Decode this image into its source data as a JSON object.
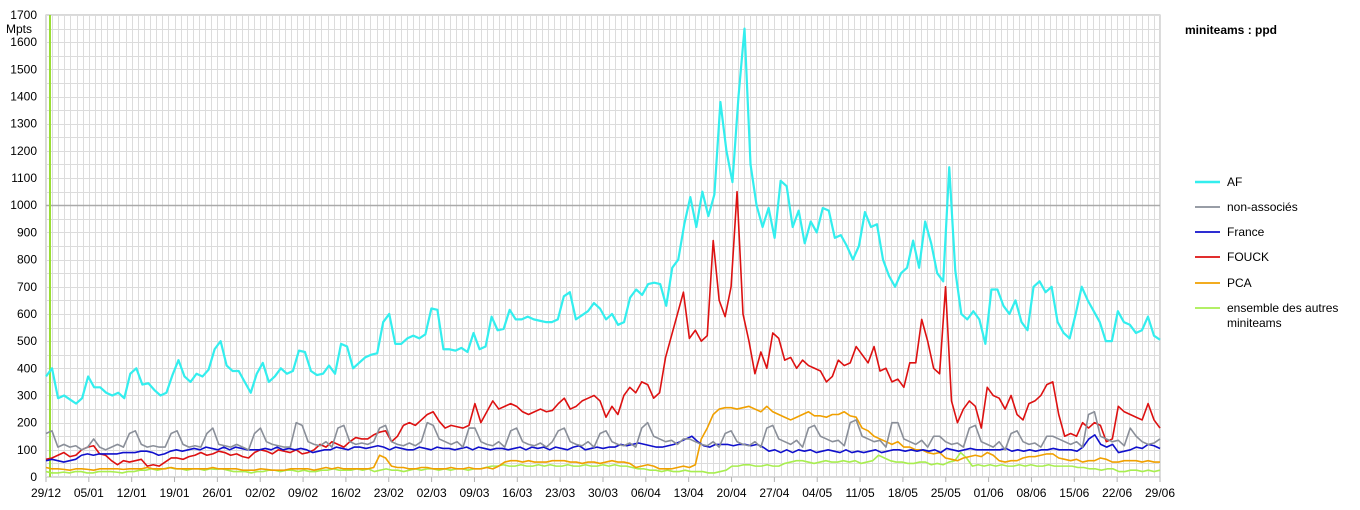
{
  "chart_data": {
    "type": "line",
    "title": "miniteams : ppd",
    "ylabel": "Mpts",
    "xlabel": "",
    "ylim": [
      0,
      1700
    ],
    "y_ticks": [
      0,
      100,
      200,
      300,
      400,
      500,
      600,
      700,
      800,
      900,
      1000,
      1100,
      1200,
      1300,
      1400,
      1500,
      1600,
      1700
    ],
    "x_tick_labels": [
      "29/12",
      "05/01",
      "12/01",
      "19/01",
      "26/01",
      "02/02",
      "09/02",
      "16/02",
      "23/02",
      "02/03",
      "09/03",
      "16/03",
      "23/03",
      "30/03",
      "06/04",
      "13/04",
      "20/04",
      "27/04",
      "04/05",
      "11/05",
      "18/05",
      "25/05",
      "01/06",
      "08/06",
      "15/06",
      "22/06",
      "29/06"
    ],
    "grid": true,
    "reference_line": 1000,
    "legend_position": "right",
    "series": [
      {
        "name": "AF",
        "color": "#33eeee",
        "values": [
          370,
          400,
          290,
          300,
          285,
          270,
          290,
          370,
          330,
          330,
          310,
          300,
          310,
          290,
          380,
          400,
          340,
          345,
          320,
          300,
          310,
          375,
          430,
          370,
          350,
          380,
          370,
          395,
          470,
          500,
          410,
          390,
          390,
          350,
          310,
          380,
          420,
          350,
          370,
          400,
          380,
          390,
          465,
          460,
          390,
          375,
          380,
          410,
          380,
          490,
          480,
          400,
          420,
          440,
          450,
          455,
          570,
          600,
          490,
          490,
          510,
          520,
          510,
          525,
          620,
          615,
          470,
          470,
          465,
          475,
          460,
          530,
          470,
          480,
          590,
          540,
          545,
          615,
          580,
          580,
          590,
          580,
          575,
          570,
          570,
          580,
          665,
          680,
          580,
          595,
          610,
          640,
          620,
          580,
          600,
          560,
          570,
          660,
          690,
          670,
          710,
          715,
          710,
          630,
          770,
          800,
          930,
          1030,
          920,
          1050,
          960,
          1040,
          1380,
          1200,
          1085,
          1400,
          1650,
          1150,
          1000,
          920,
          990,
          880,
          1090,
          1070,
          920,
          980,
          860,
          940,
          900,
          990,
          980,
          880,
          890,
          850,
          800,
          850,
          975,
          920,
          930,
          800,
          740,
          700,
          750,
          770,
          870,
          770,
          940,
          860,
          750,
          720,
          1140,
          760,
          600,
          580,
          610,
          580,
          490,
          690,
          690,
          630,
          600,
          650,
          570,
          540,
          700,
          720,
          680,
          700,
          570,
          530,
          510,
          600,
          700,
          650,
          610,
          570,
          500,
          500,
          610,
          570,
          560,
          530,
          540,
          590,
          520,
          505
        ]
      },
      {
        "name": "non-associés",
        "color": "#8a8f99",
        "values": [
          160,
          170,
          110,
          120,
          110,
          115,
          100,
          110,
          140,
          110,
          100,
          110,
          120,
          110,
          160,
          170,
          120,
          110,
          115,
          110,
          110,
          160,
          170,
          120,
          110,
          115,
          110,
          160,
          180,
          120,
          115,
          110,
          120,
          110,
          100,
          160,
          180,
          130,
          120,
          115,
          110,
          110,
          200,
          190,
          130,
          120,
          115,
          130,
          110,
          180,
          190,
          130,
          120,
          125,
          120,
          130,
          180,
          190,
          130,
          120,
          115,
          125,
          115,
          130,
          200,
          190,
          140,
          130,
          120,
          130,
          110,
          180,
          180,
          130,
          120,
          115,
          130,
          110,
          170,
          180,
          130,
          120,
          115,
          125,
          110,
          130,
          170,
          180,
          130,
          120,
          115,
          130,
          110,
          160,
          170,
          130,
          120,
          115,
          125,
          110,
          180,
          200,
          150,
          140,
          130,
          135,
          120,
          140,
          140,
          130,
          120,
          115,
          130,
          110,
          160,
          170,
          130,
          120,
          115,
          130,
          110,
          180,
          190,
          140,
          130,
          120,
          135,
          110,
          180,
          190,
          150,
          140,
          130,
          135,
          115,
          200,
          210,
          150,
          140,
          130,
          135,
          110,
          200,
          200,
          140,
          130,
          120,
          135,
          110,
          150,
          150,
          130,
          120,
          125,
          110,
          180,
          190,
          130,
          120,
          110,
          130,
          100,
          160,
          170,
          130,
          120,
          125,
          110,
          150,
          150,
          140,
          130,
          120,
          130,
          110,
          230,
          240,
          150,
          140,
          130,
          135,
          115,
          180,
          150,
          130,
          120,
          125,
          140
        ]
      },
      {
        "name": "France",
        "color": "#1010cc",
        "values": [
          60,
          65,
          60,
          55,
          60,
          65,
          80,
          85,
          80,
          85,
          85,
          85,
          85,
          90,
          90,
          90,
          95,
          95,
          90,
          80,
          85,
          95,
          100,
          95,
          100,
          105,
          100,
          110,
          105,
          100,
          110,
          100,
          110,
          105,
          100,
          100,
          100,
          105,
          100,
          110,
          100,
          105,
          100,
          105,
          100,
          90,
          95,
          100,
          100,
          110,
          105,
          100,
          110,
          110,
          105,
          110,
          115,
          110,
          100,
          110,
          105,
          100,
          100,
          110,
          105,
          100,
          110,
          105,
          105,
          100,
          105,
          110,
          100,
          110,
          105,
          100,
          105,
          105,
          100,
          105,
          110,
          100,
          110,
          105,
          110,
          100,
          110,
          105,
          100,
          110,
          115,
          100,
          105,
          110,
          105,
          110,
          110,
          120,
          115,
          120,
          125,
          120,
          115,
          110,
          110,
          115,
          120,
          130,
          140,
          150,
          130,
          115,
          110,
          120,
          120,
          120,
          115,
          120,
          120,
          115,
          120,
          110,
          95,
          100,
          90,
          100,
          90,
          100,
          95,
          100,
          90,
          95,
          100,
          95,
          90,
          100,
          90,
          95,
          90,
          95,
          100,
          90,
          95,
          100,
          100,
          95,
          100,
          95,
          100,
          95,
          100,
          90,
          105,
          100,
          95,
          100,
          105,
          100,
          100,
          100,
          100,
          100,
          105,
          95,
          100,
          95,
          100,
          95,
          100,
          100,
          105,
          100,
          100,
          100,
          95,
          110,
          140,
          155,
          120,
          110,
          120,
          90,
          95,
          100,
          110,
          105,
          120,
          115,
          105
        ]
      },
      {
        "name": "FOUCK",
        "color": "#dd1111",
        "values": [
          65,
          70,
          80,
          90,
          75,
          80,
          100,
          110,
          115,
          85,
          80,
          60,
          45,
          60,
          55,
          60,
          65,
          40,
          45,
          40,
          55,
          70,
          70,
          65,
          75,
          80,
          90,
          80,
          85,
          95,
          90,
          80,
          85,
          75,
          70,
          90,
          100,
          95,
          85,
          100,
          95,
          90,
          100,
          85,
          90,
          100,
          120,
          110,
          130,
          120,
          110,
          130,
          145,
          140,
          140,
          155,
          165,
          170,
          130,
          150,
          190,
          200,
          190,
          210,
          230,
          240,
          205,
          180,
          190,
          185,
          180,
          190,
          270,
          200,
          240,
          280,
          250,
          260,
          270,
          260,
          240,
          230,
          240,
          250,
          240,
          245,
          270,
          290,
          250,
          260,
          280,
          290,
          300,
          280,
          220,
          260,
          230,
          300,
          330,
          310,
          350,
          340,
          290,
          310,
          440,
          520,
          600,
          680,
          510,
          540,
          500,
          520,
          870,
          650,
          590,
          700,
          1050,
          600,
          500,
          380,
          460,
          400,
          530,
          510,
          430,
          440,
          400,
          430,
          410,
          400,
          390,
          350,
          370,
          430,
          410,
          420,
          480,
          450,
          420,
          480,
          390,
          400,
          350,
          360,
          330,
          420,
          420,
          580,
          500,
          400,
          380,
          700,
          280,
          200,
          250,
          280,
          260,
          180,
          330,
          300,
          290,
          250,
          300,
          230,
          210,
          270,
          280,
          300,
          340,
          350,
          230,
          150,
          160,
          150,
          200,
          180,
          200,
          190,
          130,
          140,
          260,
          240,
          230,
          220,
          210,
          270,
          210,
          180
        ]
      },
      {
        "name": "PCA",
        "color": "#f0a000",
        "values": [
          35,
          30,
          30,
          28,
          25,
          30,
          30,
          28,
          25,
          30,
          30,
          30,
          30,
          28,
          30,
          30,
          30,
          35,
          30,
          30,
          30,
          35,
          30,
          30,
          30,
          30,
          30,
          30,
          35,
          30,
          30,
          30,
          30,
          25,
          25,
          25,
          30,
          28,
          25,
          25,
          25,
          30,
          30,
          30,
          30,
          25,
          30,
          35,
          30,
          35,
          30,
          30,
          30,
          30,
          30,
          35,
          80,
          70,
          40,
          35,
          35,
          30,
          30,
          35,
          35,
          30,
          30,
          30,
          35,
          30,
          30,
          35,
          30,
          30,
          35,
          30,
          40,
          55,
          60,
          60,
          55,
          60,
          55,
          55,
          55,
          60,
          60,
          60,
          55,
          55,
          50,
          55,
          55,
          50,
          55,
          60,
          55,
          55,
          50,
          35,
          40,
          45,
          40,
          30,
          30,
          30,
          35,
          40,
          35,
          45,
          140,
          180,
          230,
          250,
          255,
          255,
          250,
          255,
          260,
          250,
          240,
          260,
          240,
          230,
          220,
          210,
          220,
          230,
          240,
          225,
          225,
          220,
          230,
          230,
          240,
          225,
          220,
          180,
          170,
          150,
          140,
          130,
          120,
          130,
          110,
          110,
          100,
          100,
          90,
          85,
          90,
          70,
          65,
          60,
          70,
          75,
          80,
          75,
          90,
          80,
          60,
          55,
          60,
          60,
          70,
          75,
          75,
          80,
          85,
          85,
          70,
          65,
          60,
          65,
          55,
          60,
          60,
          70,
          65,
          55,
          55,
          60,
          60,
          60,
          55,
          60,
          55,
          55
        ]
      },
      {
        "name": "ensemble des autres miniteams",
        "color": "#a8ee50",
        "values": [
          20,
          15,
          15,
          18,
          15,
          20,
          20,
          15,
          15,
          20,
          20,
          20,
          18,
          15,
          20,
          20,
          25,
          25,
          30,
          25,
          30,
          35,
          30,
          30,
          25,
          30,
          30,
          25,
          30,
          28,
          30,
          25,
          20,
          20,
          20,
          15,
          20,
          20,
          25,
          25,
          20,
          25,
          25,
          20,
          25,
          20,
          20,
          25,
          25,
          30,
          25,
          25,
          25,
          30,
          25,
          30,
          20,
          25,
          30,
          25,
          25,
          20,
          25,
          30,
          25,
          30,
          30,
          25,
          30,
          25,
          30,
          30,
          25,
          30,
          30,
          35,
          40,
          40,
          45,
          40,
          40,
          45,
          40,
          40,
          45,
          40,
          45,
          40,
          40,
          45,
          40,
          40,
          45,
          40,
          40,
          45,
          40,
          45,
          40,
          40,
          35,
          30,
          30,
          25,
          25,
          20,
          25,
          20,
          20,
          25,
          20,
          20,
          20,
          15,
          15,
          20,
          25,
          40,
          40,
          45,
          45,
          40,
          40,
          45,
          40,
          40,
          50,
          55,
          60,
          60,
          55,
          50,
          55,
          60,
          55,
          55,
          60,
          55,
          60,
          50,
          55,
          60,
          80,
          70,
          60,
          55,
          55,
          50,
          50,
          55,
          55,
          45,
          50,
          45,
          55,
          60,
          90,
          70,
          40,
          45,
          40,
          45,
          40,
          45,
          40,
          40,
          45,
          40,
          45,
          40,
          40,
          45,
          40,
          40,
          40,
          40,
          35,
          35,
          30,
          30,
          25,
          30,
          30,
          20,
          20,
          25,
          25,
          20,
          25,
          20,
          25
        ]
      }
    ]
  }
}
